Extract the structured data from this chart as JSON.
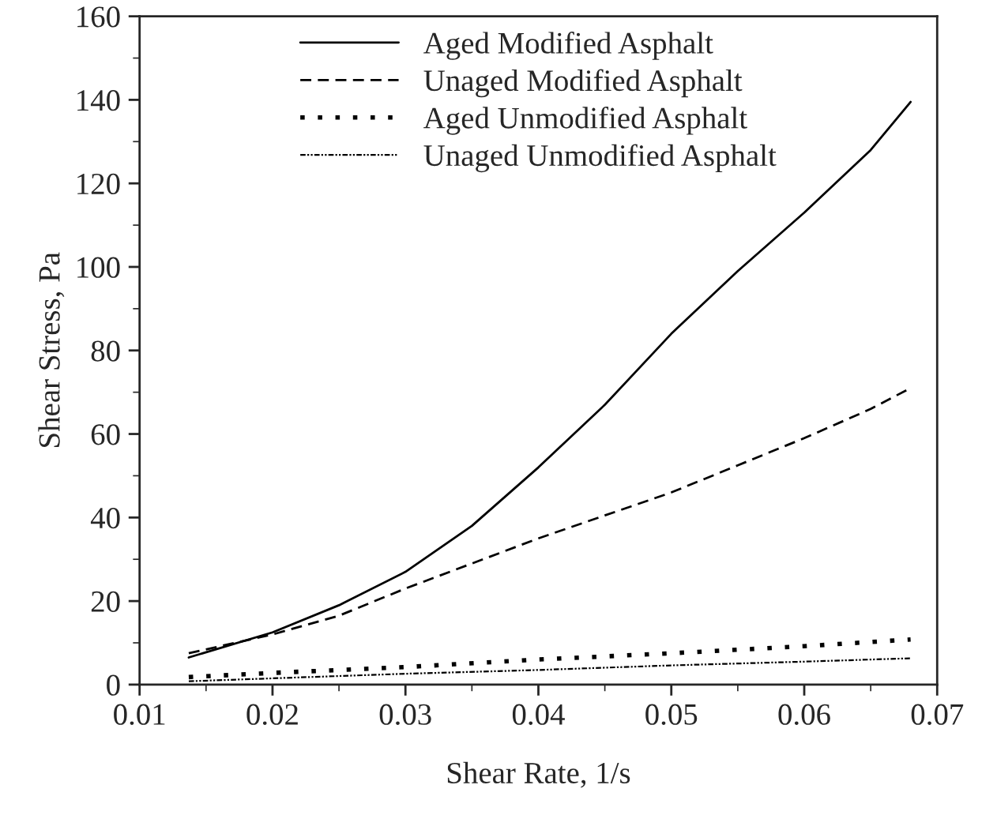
{
  "chart_data": {
    "type": "line",
    "xlabel": "Shear Rate, 1/s",
    "ylabel": "Shear Stress, Pa",
    "xlim": [
      0.01,
      0.07
    ],
    "xticks": [
      0.01,
      0.02,
      0.03,
      0.04,
      0.05,
      0.06,
      0.07
    ],
    "ylim": [
      0,
      160
    ],
    "yticks": [
      0,
      20,
      40,
      60,
      80,
      100,
      120,
      140,
      160
    ],
    "grid": false,
    "legend": "top",
    "series": [
      {
        "name": "Aged Modified Asphalt",
        "color": "#000000",
        "line_style": "solid",
        "x": [
          0.0137,
          0.02,
          0.025,
          0.03,
          0.035,
          0.04,
          0.045,
          0.05,
          0.055,
          0.06,
          0.065,
          0.068
        ],
        "values": [
          6.5,
          12.5,
          19,
          27,
          38,
          52,
          67,
          84,
          99,
          113,
          128,
          139.5
        ]
      },
      {
        "name": "Unaged Modified Asphalt",
        "color": "#000000",
        "line_style": "dashed",
        "x": [
          0.0137,
          0.02,
          0.025,
          0.03,
          0.035,
          0.04,
          0.045,
          0.05,
          0.055,
          0.06,
          0.065,
          0.068
        ],
        "values": [
          7.5,
          12,
          16.5,
          23,
          29,
          35,
          40.5,
          46,
          52.5,
          59,
          66,
          71
        ]
      },
      {
        "name": "Aged Unmodified Asphalt",
        "color": "#000000",
        "line_style": "dotted",
        "x": [
          0.0137,
          0.02,
          0.03,
          0.04,
          0.05,
          0.06,
          0.068
        ],
        "values": [
          1.8,
          2.8,
          4.2,
          6,
          7.5,
          9.2,
          10.8
        ]
      },
      {
        "name": "Unaged Unmodified Asphalt",
        "color": "#000000",
        "line_style": "dashdot",
        "x": [
          0.0137,
          0.02,
          0.03,
          0.04,
          0.05,
          0.06,
          0.068
        ],
        "values": [
          0.8,
          1.5,
          2.6,
          3.5,
          4.6,
          5.5,
          6.3
        ]
      }
    ]
  }
}
